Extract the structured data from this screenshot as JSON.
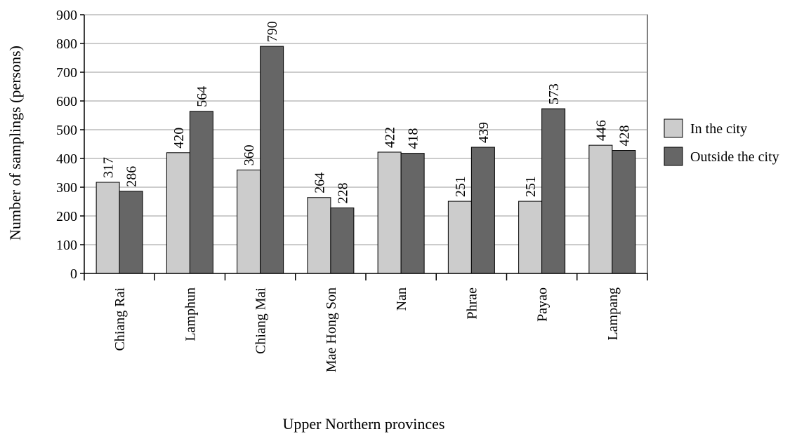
{
  "chart_data": {
    "type": "bar",
    "title": "",
    "xlabel": "Upper Northern provinces",
    "ylabel": "Number of samplings (persons)",
    "ylim": [
      0,
      900
    ],
    "yticks": [
      0,
      100,
      200,
      300,
      400,
      500,
      600,
      700,
      800,
      900
    ],
    "grid": true,
    "legend_position": "right",
    "categories": [
      "Chiang Rai",
      "Lamphun",
      "Chiang Mai",
      "Mae Hong Son",
      "Nan",
      "Phrae",
      "Payao",
      "Lampang"
    ],
    "series": [
      {
        "name": "In the city",
        "color": "#cccccc",
        "values": [
          317,
          420,
          360,
          264,
          422,
          251,
          251,
          446
        ]
      },
      {
        "name": "Outside the city",
        "color": "#666666",
        "values": [
          286,
          564,
          790,
          228,
          418,
          439,
          573,
          428
        ]
      }
    ]
  }
}
